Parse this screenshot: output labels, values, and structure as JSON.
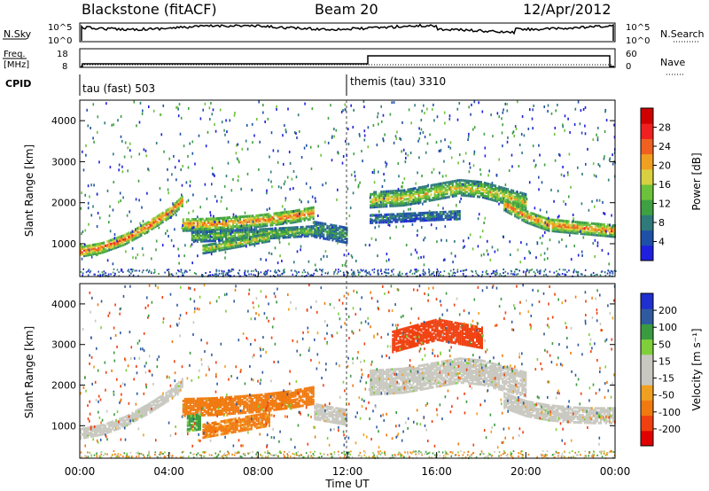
{
  "header": {
    "station": "Blackstone (fitACF)",
    "beam": "Beam 20",
    "date": "12/Apr/2012"
  },
  "strip": {
    "nsky_label": "N.Sky",
    "nsky_ticks": [
      "10^5",
      "10^0"
    ],
    "nsearch_label": "N.Search",
    "nsearch_ticks": [
      "10^5",
      "10^0"
    ],
    "freq_label_1": "Freq.",
    "freq_label_2": "[MHz]",
    "freq_ticks": [
      "18",
      "8"
    ],
    "nave_label": "Nave",
    "nave_ticks": [
      "60",
      "0"
    ],
    "cpid_label": "CPID",
    "cpid_segments": [
      "tau (fast) 503",
      "themis (tau) 3310"
    ]
  },
  "colors": {
    "power_scale": [
      "#1f1fe0",
      "#1f50a8",
      "#2f7a7a",
      "#3ea040",
      "#6cc23a",
      "#d8d040",
      "#f0a020",
      "#f06020",
      "#f02020",
      "#d00000"
    ],
    "velocity_scale": [
      "#e00000",
      "#f04010",
      "#f07a10",
      "#f0a020",
      "#c8c8c0",
      "#c8c8c0",
      "#7fcf3a",
      "#3a9a40",
      "#2f5aa0",
      "#1f2fd0"
    ],
    "ground_scatter": "#c8c8c0"
  },
  "chart_data": [
    {
      "type": "heatmap",
      "panel": "power",
      "ylabel": "Slant Range [km]",
      "xlabel": "",
      "ylim": [
        200,
        4500
      ],
      "yticks": [
        "1000",
        "2000",
        "3000",
        "4000"
      ],
      "colorbar_label": "Power [dB]",
      "colorbar_ticks": [
        "4",
        "8",
        "12",
        "16",
        "20",
        "24",
        "28"
      ],
      "xlim": [
        0,
        24
      ],
      "bands": [
        {
          "x": [
            0,
            1,
            2,
            3,
            4,
            4.6
          ],
          "y": [
            850,
            950,
            1150,
            1450,
            1800,
            2100
          ],
          "w": 130,
          "v": 24
        },
        {
          "x": [
            4.6,
            6,
            8,
            9.5,
            10.5
          ],
          "y": [
            1500,
            1520,
            1600,
            1700,
            1800
          ],
          "w": 150,
          "v": 22
        },
        {
          "x": [
            5,
            7,
            9,
            10.5
          ],
          "y": [
            1200,
            1250,
            1300,
            1350
          ],
          "w": 120,
          "v": 14
        },
        {
          "x": [
            5.5,
            6.5,
            7.5,
            8.5
          ],
          "y": [
            900,
            1000,
            1100,
            1200
          ],
          "w": 100,
          "v": 18
        },
        {
          "x": [
            10.5,
            11.5,
            12
          ],
          "y": [
            1400,
            1300,
            1250
          ],
          "w": 200,
          "v": 10
        },
        {
          "x": [
            13,
            14.5,
            16,
            17,
            18,
            19,
            20
          ],
          "y": [
            2100,
            2150,
            2300,
            2400,
            2350,
            2200,
            2050
          ],
          "w": 180,
          "v": 18
        },
        {
          "x": [
            19,
            20,
            21,
            22,
            23,
            24
          ],
          "y": [
            2000,
            1700,
            1500,
            1450,
            1400,
            1350
          ],
          "w": 150,
          "v": 22
        },
        {
          "x": [
            13,
            15,
            17
          ],
          "y": [
            1650,
            1700,
            1750
          ],
          "w": 110,
          "v": 8
        }
      ]
    },
    {
      "type": "heatmap",
      "panel": "velocity",
      "ylabel": "Slant Range [km]",
      "xlabel": "Time UT",
      "ylim": [
        200,
        4500
      ],
      "yticks": [
        "1000",
        "2000",
        "3000",
        "4000"
      ],
      "xticks": [
        "00:00",
        "04:00",
        "08:00",
        "12:00",
        "16:00",
        "20:00",
        "00:00"
      ],
      "colorbar_label": "Velocity [m s⁻¹]",
      "colorbar_ticks": [
        "-200",
        "-100",
        "-50",
        "-15",
        "15",
        "50",
        "100",
        "200"
      ],
      "xlim": [
        0,
        24
      ],
      "bands": [
        {
          "x": [
            0,
            1,
            2,
            3,
            4,
            4.6
          ],
          "y": [
            850,
            950,
            1150,
            1450,
            1800,
            2100
          ],
          "w": 130,
          "v": 0
        },
        {
          "x": [
            4.6,
            6,
            8,
            9.5,
            10.5
          ],
          "y": [
            1500,
            1520,
            1600,
            1700,
            1800
          ],
          "w": 220,
          "v": -70
        },
        {
          "x": [
            5.5,
            6.5,
            7.5,
            8.5
          ],
          "y": [
            900,
            1000,
            1100,
            1200
          ],
          "w": 160,
          "v": -60
        },
        {
          "x": [
            4.8,
            5.4
          ],
          "y": [
            1100,
            1150
          ],
          "w": 200,
          "v": 60
        },
        {
          "x": [
            10.5,
            11.5,
            12
          ],
          "y": [
            1400,
            1300,
            1250
          ],
          "w": 200,
          "v": 0
        },
        {
          "x": [
            13,
            14.5,
            16,
            17,
            18,
            19,
            20
          ],
          "y": [
            2100,
            2150,
            2300,
            2400,
            2350,
            2200,
            2050
          ],
          "w": 300,
          "v": 0
        },
        {
          "x": [
            19,
            20,
            21,
            22,
            23,
            24
          ],
          "y": [
            1650,
            1450,
            1350,
            1300,
            1280,
            1280
          ],
          "w": 180,
          "v": 0
        },
        {
          "x": [
            14,
            16,
            18
          ],
          "y": [
            3100,
            3400,
            3200
          ],
          "w": 250,
          "v": -120
        }
      ]
    }
  ]
}
